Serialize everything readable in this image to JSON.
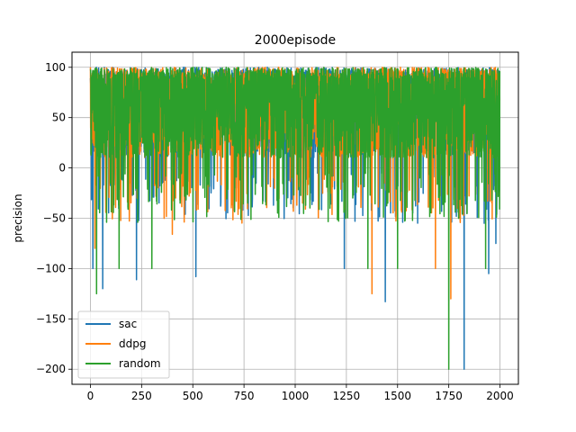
{
  "chart_data": {
    "type": "line",
    "title": "2000episode",
    "xlabel": "",
    "ylabel": "precision",
    "xlim": [
      -90,
      2090
    ],
    "ylim": [
      -215,
      115
    ],
    "xticks": [
      0,
      250,
      500,
      750,
      1000,
      1250,
      1500,
      1750,
      2000
    ],
    "yticks": [
      -200,
      -150,
      -100,
      -50,
      0,
      50,
      100
    ],
    "grid": true,
    "legend_position": "lower-left",
    "num_points": 2000,
    "series": [
      {
        "name": "sac",
        "color": "#1f77b4",
        "typical_range": [
          0,
          100
        ],
        "notable_points": [
          {
            "x": 12,
            "y": -100
          },
          {
            "x": 60,
            "y": -120
          },
          {
            "x": 225,
            "y": -111
          },
          {
            "x": 515,
            "y": -108
          },
          {
            "x": 1240,
            "y": -100
          },
          {
            "x": 1440,
            "y": -133
          },
          {
            "x": 1825,
            "y": -200
          },
          {
            "x": 1945,
            "y": -105
          },
          {
            "x": 1980,
            "y": -75
          }
        ]
      },
      {
        "name": "ddpg",
        "color": "#ff7f0e",
        "typical_range": [
          0,
          100
        ],
        "notable_points": [
          {
            "x": 22,
            "y": -80
          },
          {
            "x": 400,
            "y": -66
          },
          {
            "x": 1375,
            "y": -125
          },
          {
            "x": 1685,
            "y": -100
          },
          {
            "x": 1760,
            "y": -130
          }
        ]
      },
      {
        "name": "random",
        "color": "#2ca02c",
        "typical_range": [
          0,
          100
        ],
        "notable_points": [
          {
            "x": 30,
            "y": -125
          },
          {
            "x": 140,
            "y": -100
          },
          {
            "x": 300,
            "y": -100
          },
          {
            "x": 1355,
            "y": -100
          },
          {
            "x": 1500,
            "y": -100
          },
          {
            "x": 1750,
            "y": -200
          },
          {
            "x": 1930,
            "y": -100
          }
        ]
      }
    ]
  }
}
